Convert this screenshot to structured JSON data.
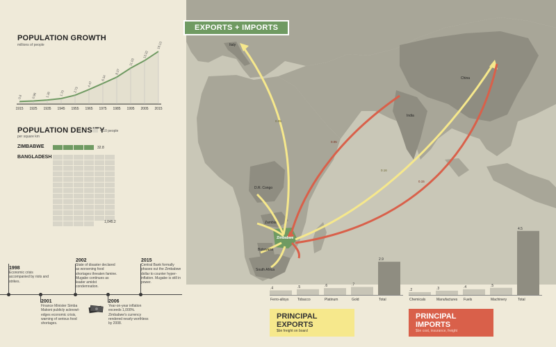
{
  "map": {
    "banner": "EXPORTS + IMPORTS",
    "labels": {
      "italy": "Italy",
      "china": "China",
      "india": "India",
      "drc": "D.R. Congo",
      "zambia": "Zambia",
      "zimbabwe": "Zimbabwe",
      "botswana": "Botswana",
      "south_africa": "South Africa"
    },
    "flow_values": {
      "italy": "0.05",
      "india": "0.05",
      "china_export": "0.16",
      "china_import": "0.15"
    }
  },
  "population_growth": {
    "title": "POPULATION GROWTH",
    "subtitle": "millions of people"
  },
  "population_density": {
    "title": "POPULATION DENSITY",
    "legend_note": "= 10 people",
    "subtitle": "per square km",
    "zimbabwe_label": "ZIMBABWE",
    "zimbabwe_value": "32.8",
    "bangladesh_label": "BANGLADESH",
    "bangladesh_value": "1,045.2"
  },
  "timeline": [
    {
      "year": "1998",
      "text": "Economic crisis accompanied by riots and strikes."
    },
    {
      "year": "2001",
      "text": "Finance Minister Simba Makoni publicly acknowl-edges economic crisis, warning of serious food shortages."
    },
    {
      "year": "2002",
      "text": "State of disaster declared as worsening food shortages threaten famine. Mugabe continues as leader amidst condemnation."
    },
    {
      "year": "2006",
      "text": "Year-on-year inflation exceeds 1,000%. Zimbabwe's currency rendered nearly worthless by 2008."
    },
    {
      "year": "2015",
      "text": "Central Bank formally phases out the Zimbabwe dollar to counter hyper-inflation. Mugabe is still in power."
    }
  ],
  "exports_legend": {
    "title": "PRINCIPAL EXPORTS",
    "subtitle": "$bn freight on board"
  },
  "imports_legend": {
    "title": "PRINCIPAL IMPORTS",
    "subtitle": "$bn cost, insurance, freight"
  },
  "colors": {
    "export": "#f6e88c",
    "import": "#d9604a",
    "green": "#6f9a62",
    "bar": "#a3a194",
    "ocean": "#c9c7b7"
  },
  "chart_data": [
    {
      "type": "area",
      "title": "POPULATION GROWTH",
      "ylabel": "millions of people",
      "x": [
        "1915",
        "1925",
        "1935",
        "1945",
        "1955",
        "1965",
        "1975",
        "1985",
        "1995",
        "2005",
        "2015"
      ],
      "values": [
        0.8,
        0.96,
        1.26,
        1.7,
        2.73,
        4.47,
        6.34,
        8.27,
        11.03,
        13.32,
        16.13
      ],
      "value_labels": [
        "0.8",
        "0.96",
        "1.26",
        "1.70",
        "2.73",
        "4.47",
        "6.34",
        "8.27",
        "11.03",
        "13.32",
        "16.13"
      ]
    },
    {
      "type": "bar",
      "title": "PRINCIPAL EXPORTS",
      "ylabel": "$bn freight on board",
      "categories": [
        "Ferro-alloys",
        "Tobacco",
        "Platinum",
        "Gold",
        "Total"
      ],
      "values": [
        0.4,
        0.5,
        0.6,
        0.7,
        2.9
      ],
      "value_labels": [
        ".4",
        ".5",
        ".6",
        ".7",
        "2.9"
      ]
    },
    {
      "type": "bar",
      "title": "PRINCIPAL IMPORTS",
      "ylabel": "$bn cost, insurance, freight",
      "categories": [
        "Chemicals",
        "Manufactures",
        "Fuels",
        "Machinery",
        "Total"
      ],
      "values": [
        0.2,
        0.3,
        0.4,
        0.5,
        4.5
      ],
      "value_labels": [
        ".2",
        ".3",
        ".4",
        ".5",
        "4.5"
      ]
    }
  ]
}
